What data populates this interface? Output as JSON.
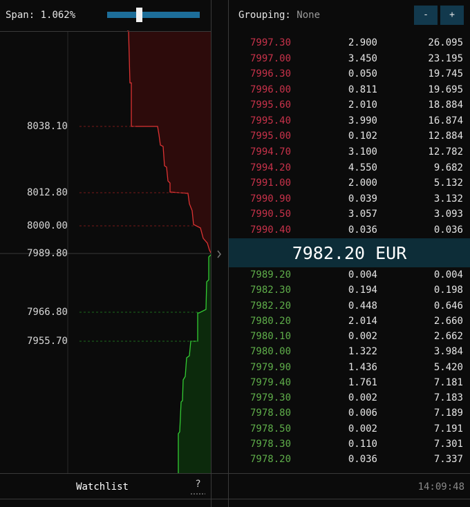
{
  "toolbar": {
    "span_label": "Span:",
    "span_value": "1.062%"
  },
  "depth_chart": {
    "price_labels": [
      "8038.10",
      "8012.80",
      "8000.00",
      "7989.80",
      "7966.80",
      "7955.70"
    ]
  },
  "footer_left": {
    "tab": "Watchlist",
    "help": "?"
  },
  "order_book": {
    "grouping_label": "Grouping:",
    "grouping_value": "None",
    "buttons": [
      "-",
      "+"
    ],
    "asks": [
      [
        "7997.30",
        "2.900",
        "26.095"
      ],
      [
        "7997.00",
        "3.450",
        "23.195"
      ],
      [
        "7996.30",
        "0.050",
        "19.745"
      ],
      [
        "7996.00",
        "0.811",
        "19.695"
      ],
      [
        "7995.60",
        "2.010",
        "18.884"
      ],
      [
        "7995.40",
        "3.990",
        "16.874"
      ],
      [
        "7995.00",
        "0.102",
        "12.884"
      ],
      [
        "7994.70",
        "3.100",
        "12.782"
      ],
      [
        "7994.20",
        "4.550",
        "9.682"
      ],
      [
        "7991.00",
        "2.000",
        "5.132"
      ],
      [
        "7990.90",
        "0.039",
        "3.132"
      ],
      [
        "7990.50",
        "3.057",
        "3.093"
      ],
      [
        "7990.40",
        "0.036",
        "0.036"
      ]
    ],
    "mid_price": "7982.20 EUR",
    "bids": [
      [
        "7989.20",
        "0.004",
        "0.004"
      ],
      [
        "7982.30",
        "0.194",
        "0.198"
      ],
      [
        "7982.20",
        "0.448",
        "0.646"
      ],
      [
        "7980.20",
        "2.014",
        "2.660"
      ],
      [
        "7980.10",
        "0.002",
        "2.662"
      ],
      [
        "7980.00",
        "1.322",
        "3.984"
      ],
      [
        "7979.90",
        "1.436",
        "5.420"
      ],
      [
        "7979.40",
        "1.761",
        "7.181"
      ],
      [
        "7979.30",
        "0.002",
        "7.183"
      ],
      [
        "7978.80",
        "0.006",
        "7.189"
      ],
      [
        "7978.50",
        "0.002",
        "7.191"
      ],
      [
        "7978.30",
        "0.110",
        "7.301"
      ],
      [
        "7978.20",
        "0.036",
        "7.337"
      ]
    ],
    "time": "14:09:48"
  }
}
